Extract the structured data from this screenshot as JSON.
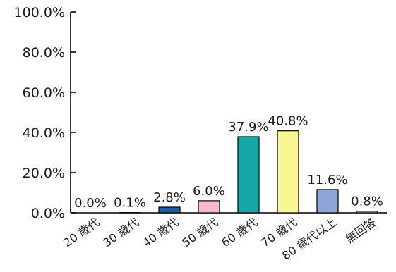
{
  "chart_data": {
    "type": "bar",
    "title": "",
    "xlabel": "",
    "ylabel": "",
    "ylim": [
      0,
      100
    ],
    "yticks": [
      0,
      20,
      40,
      60,
      80,
      100
    ],
    "ytick_labels": [
      "0.0%",
      "20.0%",
      "40.0%",
      "60.0%",
      "80.0%",
      "100.0%"
    ],
    "categories": [
      "20 歳代",
      "30 歳代",
      "40 歳代",
      "50 歳代",
      "60 歳代",
      "70 歳代",
      "80 歳代以上",
      "無回答"
    ],
    "values": [
      0.0,
      0.1,
      2.8,
      6.0,
      37.9,
      40.8,
      11.6,
      0.8
    ],
    "data_labels": [
      "0.0%",
      "0.1%",
      "2.8%",
      "6.0%",
      "37.9%",
      "40.8%",
      "11.6%",
      "0.8%"
    ],
    "bar_colors": [
      "#ffffff",
      "#ffffff",
      "#1a5ea8",
      "#f7b8d2",
      "#13a8a8",
      "#f8f593",
      "#8ea6d7",
      "#b0b0b0"
    ],
    "grid": false,
    "legend": "none"
  }
}
